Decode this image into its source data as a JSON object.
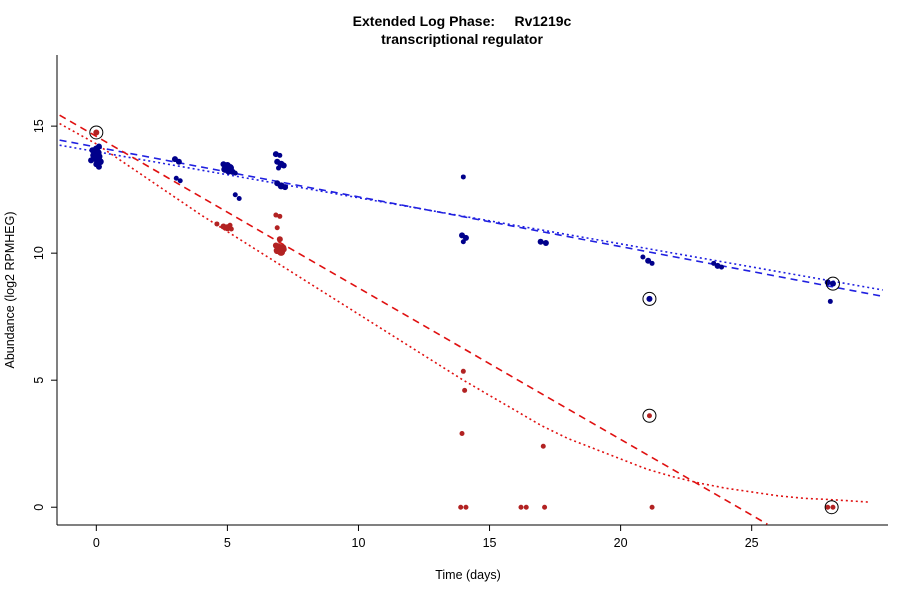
{
  "chart_data": {
    "type": "scatter",
    "title": "Extended Log Phase:     Rv1219c",
    "subtitle": "transcriptional regulator",
    "xlabel": "Time  (days)",
    "ylabel": "Abundance  (log2 RPMHEG)",
    "xlim": [
      -1.5,
      30.2
    ],
    "ylim": [
      -0.7,
      17.8
    ],
    "xticks": [
      0,
      5,
      10,
      15,
      20,
      25
    ],
    "yticks": [
      0,
      5,
      10,
      15
    ],
    "grid": false,
    "legend": "none",
    "background": "#ffffff",
    "series": [
      {
        "name": "blue-condition-points",
        "color": "#00008B",
        "points": [
          [
            -0.15,
            14.05,
            3
          ],
          [
            0,
            14.1,
            3.5
          ],
          [
            0.1,
            14.2,
            3
          ],
          [
            0.05,
            13.95,
            4
          ],
          [
            -0.1,
            13.85,
            3.5
          ],
          [
            0.1,
            13.8,
            3.5
          ],
          [
            0,
            13.75,
            4.5
          ],
          [
            -0.2,
            13.65,
            3
          ],
          [
            0.15,
            13.6,
            3.5
          ],
          [
            0,
            13.5,
            3
          ],
          [
            0.1,
            13.4,
            3
          ],
          [
            3,
            13.7,
            3
          ],
          [
            3.15,
            13.6,
            3
          ],
          [
            3.05,
            12.95,
            2.5
          ],
          [
            3.2,
            12.85,
            2.5
          ],
          [
            4.85,
            13.5,
            3
          ],
          [
            5,
            13.45,
            3.5
          ],
          [
            5.1,
            13.35,
            4
          ],
          [
            4.9,
            13.3,
            3.5
          ],
          [
            5.05,
            13.25,
            4
          ],
          [
            5.2,
            13.2,
            3
          ],
          [
            5.3,
            13.15,
            2.5
          ],
          [
            5.3,
            12.3,
            2.5
          ],
          [
            5.45,
            12.15,
            2.5
          ],
          [
            6.85,
            13.9,
            3
          ],
          [
            7,
            13.85,
            2.5
          ],
          [
            6.9,
            13.6,
            3
          ],
          [
            7.05,
            13.5,
            3.5
          ],
          [
            7.15,
            13.45,
            3
          ],
          [
            6.95,
            13.35,
            2.5
          ],
          [
            6.9,
            12.75,
            3
          ],
          [
            7.05,
            12.65,
            3.5
          ],
          [
            7.2,
            12.6,
            3
          ],
          [
            14,
            13.0,
            2.5
          ],
          [
            13.95,
            10.7,
            3
          ],
          [
            14.1,
            10.6,
            3
          ],
          [
            14,
            10.45,
            2.5
          ],
          [
            16.95,
            10.45,
            3
          ],
          [
            17.15,
            10.4,
            3
          ],
          [
            20.85,
            9.85,
            2.5
          ],
          [
            21.05,
            9.7,
            3
          ],
          [
            21.2,
            9.6,
            2.5
          ],
          [
            21.1,
            8.2,
            3
          ],
          [
            23.55,
            9.6,
            2.5
          ],
          [
            23.7,
            9.5,
            3
          ],
          [
            23.85,
            9.45,
            2.5
          ],
          [
            27.9,
            8.85,
            3
          ],
          [
            28.1,
            8.8,
            3
          ],
          [
            28,
            8.1,
            2.5
          ]
        ]
      },
      {
        "name": "red-condition-points",
        "color": "#B22222",
        "points": [
          [
            0,
            14.75,
            3
          ],
          [
            4.6,
            11.15,
            2.5
          ],
          [
            4.85,
            11.05,
            3
          ],
          [
            5,
            11.0,
            3.5
          ],
          [
            5.1,
            11.1,
            2.5
          ],
          [
            5.15,
            10.95,
            2.5
          ],
          [
            6.85,
            11.5,
            2.5
          ],
          [
            7,
            11.45,
            2.5
          ],
          [
            6.9,
            11.0,
            2.5
          ],
          [
            7,
            10.55,
            3
          ],
          [
            6.85,
            10.3,
            3
          ],
          [
            6.95,
            10.25,
            3.5
          ],
          [
            7.1,
            10.2,
            4
          ],
          [
            6.9,
            10.1,
            3.5
          ],
          [
            7.05,
            10.05,
            4
          ],
          [
            7.15,
            10.15,
            3
          ],
          [
            14,
            5.35,
            2.5
          ],
          [
            14.05,
            4.6,
            2.5
          ],
          [
            13.95,
            2.9,
            2.5
          ],
          [
            13.9,
            0,
            2.5
          ],
          [
            14.1,
            0,
            2.5
          ],
          [
            16.2,
            0,
            2.5
          ],
          [
            16.4,
            0,
            2.5
          ],
          [
            17.05,
            2.4,
            2.5
          ],
          [
            17.1,
            0,
            2.5
          ],
          [
            21.1,
            3.6,
            2.5
          ],
          [
            21.2,
            0,
            2.5
          ],
          [
            27.9,
            0,
            2.5
          ],
          [
            28.1,
            0,
            2.5
          ]
        ]
      }
    ],
    "circled_points": [
      [
        0,
        14.75
      ],
      [
        21.1,
        8.2
      ],
      [
        21.1,
        3.6
      ],
      [
        28.1,
        8.8
      ],
      [
        28.05,
        0
      ]
    ],
    "lines": [
      {
        "name": "blue-longdash-fit",
        "color": "#2020E0",
        "dash": "7,5",
        "x1": -1.4,
        "y1": 14.45,
        "x2": 30.0,
        "y2": 8.3
      },
      {
        "name": "blue-dotted-fit",
        "color": "#2020E0",
        "dash": "2,3",
        "x1": -1.4,
        "y1": 14.25,
        "x2": 30.0,
        "y2": 8.55
      },
      {
        "name": "red-longdash-fit",
        "color": "#E01010",
        "dash": "7,5",
        "x1": -1.4,
        "y1": 15.43,
        "x2": 25.6,
        "y2": -0.67
      },
      {
        "name": "red-dotted-fit-curve",
        "color": "#E01010",
        "dash": "2,3",
        "points": [
          [
            -1.4,
            15.1
          ],
          [
            0,
            14.3
          ],
          [
            2,
            12.9
          ],
          [
            4,
            11.5
          ],
          [
            6,
            10.2
          ],
          [
            8,
            8.9
          ],
          [
            10,
            7.6
          ],
          [
            12,
            6.3
          ],
          [
            14,
            5.0
          ],
          [
            15,
            4.4
          ],
          [
            16,
            3.8
          ],
          [
            17,
            3.2
          ],
          [
            18,
            2.7
          ],
          [
            19,
            2.3
          ],
          [
            20,
            1.9
          ],
          [
            21,
            1.5
          ],
          [
            22,
            1.2
          ],
          [
            23,
            0.95
          ],
          [
            24,
            0.75
          ],
          [
            25,
            0.6
          ],
          [
            26,
            0.45
          ],
          [
            27,
            0.35
          ],
          [
            28,
            0.3
          ],
          [
            29.5,
            0.2
          ]
        ]
      }
    ]
  }
}
